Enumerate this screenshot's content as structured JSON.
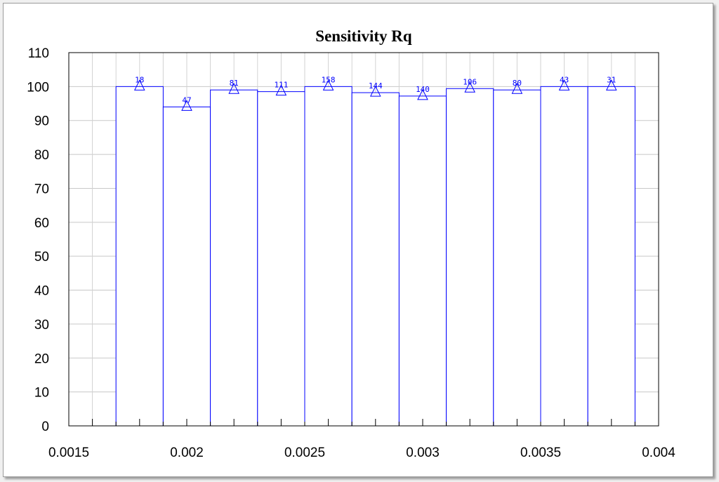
{
  "chart_data": {
    "type": "bar",
    "title": "Sensitivity Rq",
    "xlabel": "",
    "ylabel": "",
    "xlim": [
      0.0015,
      0.004
    ],
    "ylim": [
      0,
      110
    ],
    "x_ticks": [
      "0.0015",
      "0.002",
      "0.0025",
      "0.003",
      "0.0035",
      "0.004"
    ],
    "y_ticks": [
      "0",
      "10",
      "20",
      "30",
      "40",
      "50",
      "60",
      "70",
      "80",
      "90",
      "100",
      "110"
    ],
    "grid": true,
    "bin_width": 0.0002,
    "x": [
      0.0018,
      0.002,
      0.0022,
      0.0024,
      0.0026,
      0.0028,
      0.003,
      0.0032,
      0.0034,
      0.0036,
      0.0038
    ],
    "values": [
      100,
      94,
      99,
      98.5,
      100,
      98.2,
      97.2,
      99.4,
      99,
      100,
      100
    ],
    "labels": [
      "18",
      "47",
      "81",
      "111",
      "158",
      "144",
      "140",
      "106",
      "80",
      "43",
      "31"
    ],
    "bar_color": "#0000ff"
  }
}
